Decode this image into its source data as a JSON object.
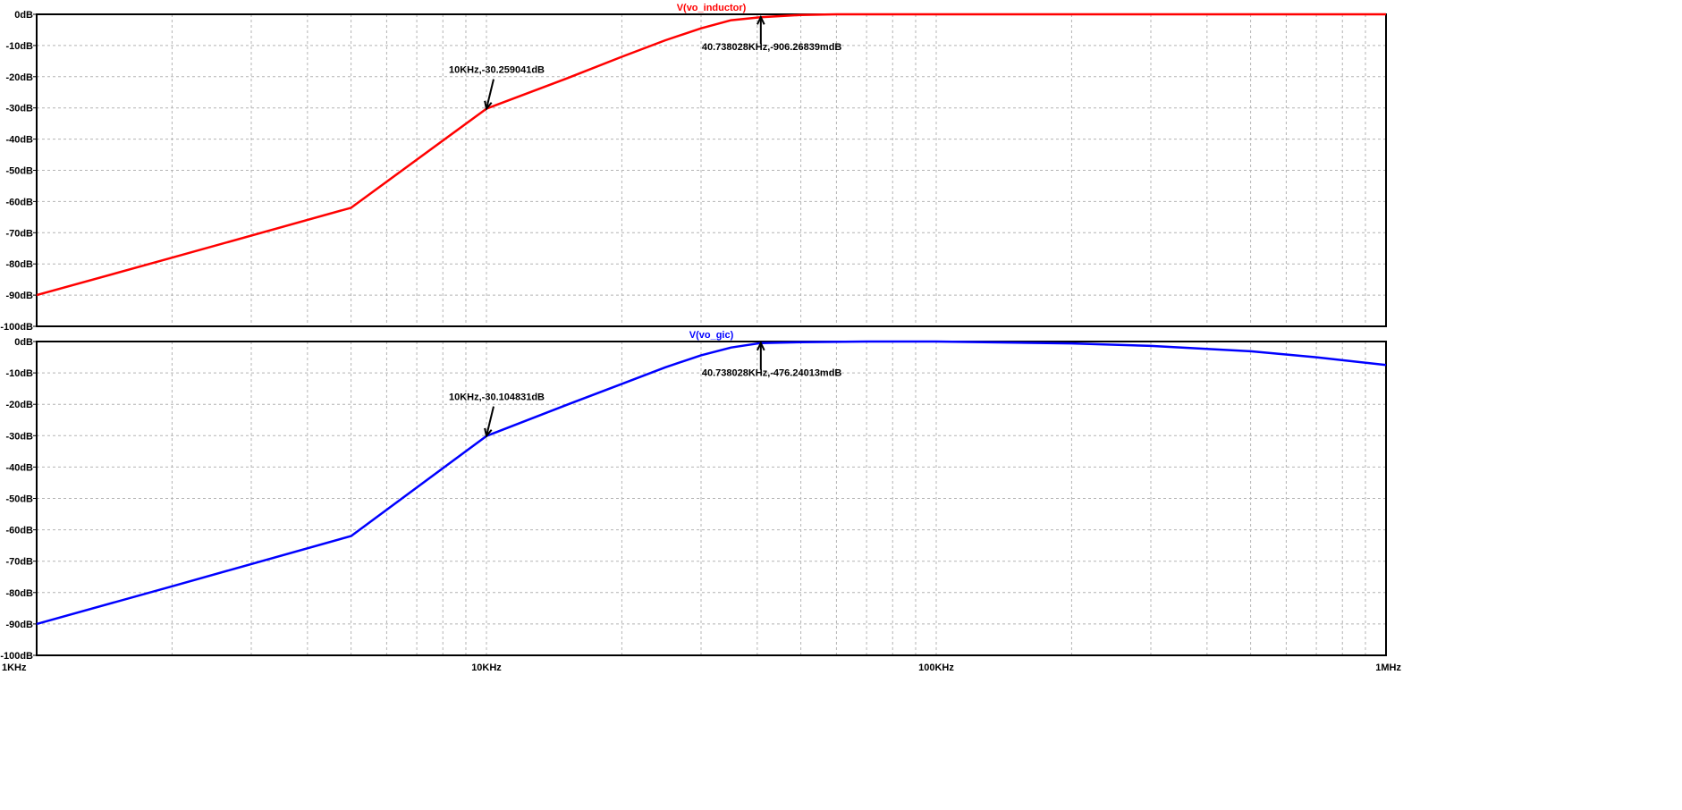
{
  "chart_data": [
    {
      "type": "line",
      "title": "V(vo_inductor)",
      "title_color": "#ff0000",
      "color": "#ff0000",
      "x_scale": "log",
      "xlim": [
        1000,
        1000000
      ],
      "ylim": [
        -100,
        0
      ],
      "x_tick_labels": [
        "",
        "",
        "",
        ""
      ],
      "y_ticks": [
        0,
        -10,
        -20,
        -30,
        -40,
        -50,
        -60,
        -70,
        -80,
        -90,
        -100
      ],
      "y_tick_labels": [
        "0dB",
        "-10dB",
        "-20dB",
        "-30dB",
        "-40dB",
        "-50dB",
        "-60dB",
        "-70dB",
        "-80dB",
        "-90dB",
        "-100dB"
      ],
      "grid": true,
      "series": [
        {
          "name": "V(vo_inductor)",
          "x": [
            1000,
            2000,
            5000,
            10000,
            15000,
            20000,
            25000,
            30000,
            35000,
            40738,
            50000,
            60000,
            100000,
            200000,
            500000,
            1000000
          ],
          "values": [
            -90,
            -78,
            -62,
            -30.26,
            -20.7,
            -13.6,
            -8.3,
            -4.5,
            -1.9,
            -0.906,
            -0.2,
            0,
            0,
            0,
            0,
            0
          ]
        }
      ],
      "annotations": [
        {
          "label": "10KHz,-30.259041dB",
          "x": 10000,
          "y": -30.259041
        },
        {
          "label": "40.738028KHz,-906.26839mdB",
          "x": 40738.028,
          "y": -0.906
        }
      ]
    },
    {
      "type": "line",
      "title": "V(vo_gic)",
      "title_color": "#0000ff",
      "color": "#0000ff",
      "x_scale": "log",
      "xlim": [
        1000,
        1000000
      ],
      "ylim": [
        -100,
        0
      ],
      "x_tick_labels": [
        "1KHz",
        "10KHz",
        "100KHz",
        "1MHz"
      ],
      "y_ticks": [
        0,
        -10,
        -20,
        -30,
        -40,
        -50,
        -60,
        -70,
        -80,
        -90,
        -100
      ],
      "y_tick_labels": [
        "0dB",
        "-10dB",
        "-20dB",
        "-30dB",
        "-40dB",
        "-50dB",
        "-60dB",
        "-70dB",
        "-80dB",
        "-90dB",
        "-100dB"
      ],
      "grid": true,
      "series": [
        {
          "name": "V(vo_gic)",
          "x": [
            1000,
            2000,
            5000,
            10000,
            15000,
            20000,
            25000,
            30000,
            35000,
            40738,
            50000,
            70000,
            100000,
            200000,
            300000,
            500000,
            700000,
            1000000
          ],
          "values": [
            -90,
            -78,
            -62,
            -30.1,
            -20.3,
            -13.5,
            -8.2,
            -4.4,
            -1.9,
            -0.476,
            -0.2,
            0,
            0,
            -0.6,
            -1.4,
            -3.1,
            -5,
            -7.5
          ]
        }
      ],
      "annotations": [
        {
          "label": "10KHz,-30.104831dB",
          "x": 10000,
          "y": -30.104831
        },
        {
          "label": "40.738028KHz,-476.24013mdB",
          "x": 40738.028,
          "y": -0.476
        }
      ]
    }
  ]
}
